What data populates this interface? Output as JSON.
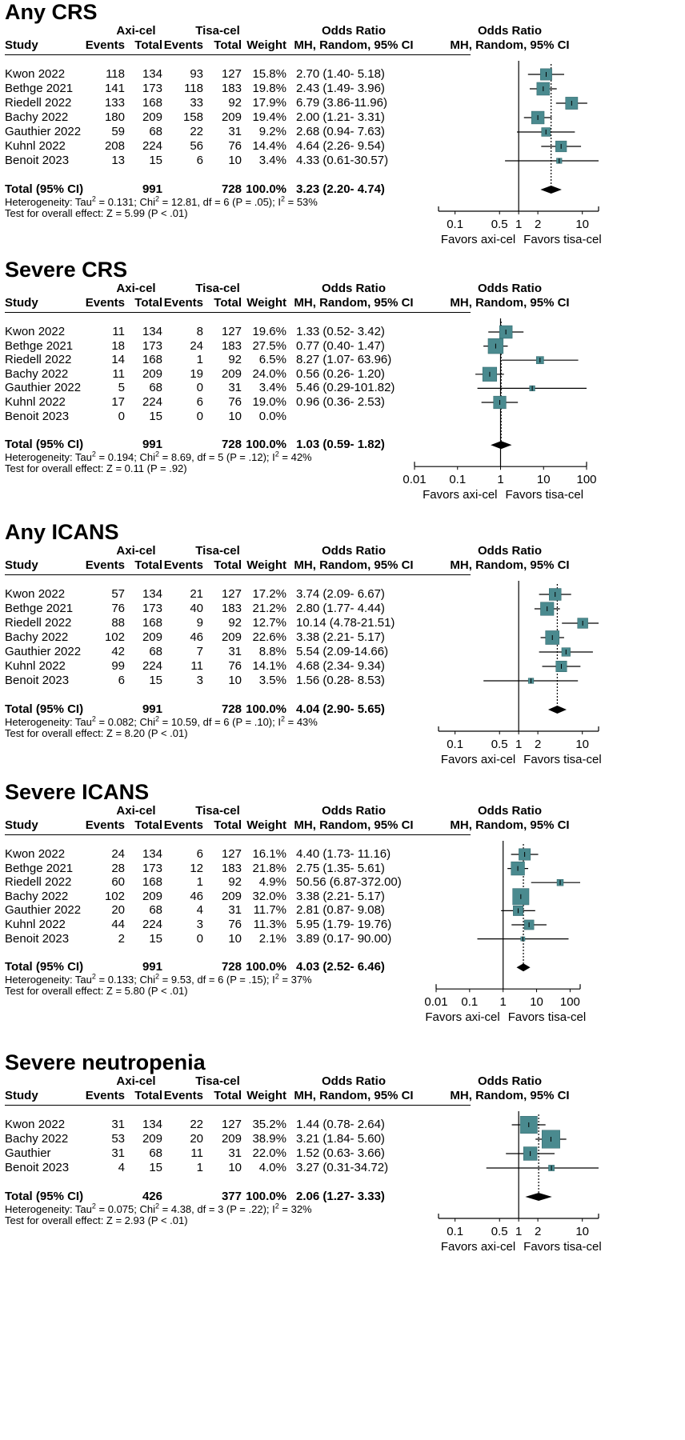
{
  "columns": {
    "study": "Study",
    "axi_group": "Axi-cel",
    "tisa_group": "Tisa-cel",
    "events": "Events",
    "total": "Total",
    "weight": "Weight",
    "or_top": "Odds Ratio",
    "or_bottom": "MH, Random, 95% CI",
    "plot_top": "Odds Ratio",
    "plot_bottom": "MH, Random, 95% CI"
  },
  "favors_left": "Favors axi-cel",
  "favors_right": "Favors tisa-cel",
  "colors": {
    "box": "#4a8a8f",
    "box_edge": "#2f6468",
    "line": "#000000"
  },
  "chart_data": [
    {
      "type": "forest",
      "title": "Any CRS",
      "xscale": "log",
      "xlim": [
        0.055,
        18
      ],
      "ticks": [
        0.1,
        0.5,
        1,
        2,
        10
      ],
      "tick_labels": [
        "0.1",
        "0.5",
        "1",
        "2",
        "10"
      ],
      "studies": [
        {
          "study": "Kwon 2022",
          "ev1": "118",
          "n1": "134",
          "ev2": "93",
          "n2": "127",
          "weight": "15.8%",
          "or_text": "2.70 (1.40- 5.18)",
          "or": 2.7,
          "lo": 1.4,
          "hi": 5.18,
          "w": 15.8
        },
        {
          "study": "Bethge 2021",
          "ev1": "141",
          "n1": "173",
          "ev2": "118",
          "n2": "183",
          "weight": "19.8%",
          "or_text": "2.43 (1.49- 3.96)",
          "or": 2.43,
          "lo": 1.49,
          "hi": 3.96,
          "w": 19.8
        },
        {
          "study": "Riedell 2022",
          "ev1": "133",
          "n1": "168",
          "ev2": "33",
          "n2": "92",
          "weight": "17.9%",
          "or_text": "6.79 (3.86-11.96)",
          "or": 6.79,
          "lo": 3.86,
          "hi": 11.96,
          "w": 17.9
        },
        {
          "study": "Bachy 2022",
          "ev1": "180",
          "n1": "209",
          "ev2": "158",
          "n2": "209",
          "weight": "19.4%",
          "or_text": "2.00 (1.21- 3.31)",
          "or": 2.0,
          "lo": 1.21,
          "hi": 3.31,
          "w": 19.4
        },
        {
          "study": "Gauthier 2022",
          "ev1": "59",
          "n1": "68",
          "ev2": "22",
          "n2": "31",
          "weight": "9.2%",
          "or_text": "2.68 (0.94- 7.63)",
          "or": 2.68,
          "lo": 0.94,
          "hi": 7.63,
          "w": 9.2
        },
        {
          "study": "Kuhnl 2022",
          "ev1": "208",
          "n1": "224",
          "ev2": "56",
          "n2": "76",
          "weight": "14.4%",
          "or_text": "4.64 (2.26- 9.54)",
          "or": 4.64,
          "lo": 2.26,
          "hi": 9.54,
          "w": 14.4
        },
        {
          "study": "Benoit 2023",
          "ev1": "13",
          "n1": "15",
          "ev2": "6",
          "n2": "10",
          "weight": "3.4%",
          "or_text": "4.33 (0.61-30.57)",
          "or": 4.33,
          "lo": 0.61,
          "hi": 30.57,
          "w": 3.4
        }
      ],
      "total": {
        "label": "Total (95% CI)",
        "n1": "991",
        "n2": "728",
        "weight": "100.0%",
        "or_text": "3.23 (2.20- 4.74)",
        "or": 3.23,
        "lo": 2.2,
        "hi": 4.74
      },
      "heterogeneity": {
        "tau2": "0.131",
        "chi2": "12.81",
        "df": "6",
        "p": "(P = .05)",
        "i2": "53%"
      },
      "overall_effect": "Test for overall effect: Z = 5.99 (P < .01)"
    },
    {
      "type": "forest",
      "title": "Severe CRS",
      "xscale": "log",
      "xlim": [
        0.01,
        100
      ],
      "ticks": [
        0.01,
        0.1,
        1,
        10,
        100
      ],
      "tick_labels": [
        "0.01",
        "0.1",
        "1",
        "10",
        "100"
      ],
      "studies": [
        {
          "study": "Kwon 2022",
          "ev1": "11",
          "n1": "134",
          "ev2": "8",
          "n2": "127",
          "weight": "19.6%",
          "or_text": "1.33 (0.52- 3.42)",
          "or": 1.33,
          "lo": 0.52,
          "hi": 3.42,
          "w": 19.6
        },
        {
          "study": "Bethge 2021",
          "ev1": "18",
          "n1": "173",
          "ev2": "24",
          "n2": "183",
          "weight": "27.5%",
          "or_text": "0.77 (0.40- 1.47)",
          "or": 0.77,
          "lo": 0.4,
          "hi": 1.47,
          "w": 27.5
        },
        {
          "study": "Riedell 2022",
          "ev1": "14",
          "n1": "168",
          "ev2": "1",
          "n2": "92",
          "weight": "6.5%",
          "or_text": "8.27 (1.07- 63.96)",
          "or": 8.27,
          "lo": 1.07,
          "hi": 63.96,
          "w": 6.5
        },
        {
          "study": "Bachy 2022",
          "ev1": "11",
          "n1": "209",
          "ev2": "19",
          "n2": "209",
          "weight": "24.0%",
          "or_text": "0.56 (0.26- 1.20)",
          "or": 0.56,
          "lo": 0.26,
          "hi": 1.2,
          "w": 24.0
        },
        {
          "study": "Gauthier 2022",
          "ev1": "5",
          "n1": "68",
          "ev2": "0",
          "n2": "31",
          "weight": "3.4%",
          "or_text": "5.46 (0.29-101.82)",
          "or": 5.46,
          "lo": 0.29,
          "hi": 101.82,
          "w": 3.4
        },
        {
          "study": "Kuhnl 2022",
          "ev1": "17",
          "n1": "224",
          "ev2": "6",
          "n2": "76",
          "weight": "19.0%",
          "or_text": "0.96 (0.36- 2.53)",
          "or": 0.96,
          "lo": 0.36,
          "hi": 2.53,
          "w": 19.0
        },
        {
          "study": "Benoit 2023",
          "ev1": "0",
          "n1": "15",
          "ev2": "0",
          "n2": "10",
          "weight": "0.0%",
          "or_text": "",
          "or": null,
          "lo": null,
          "hi": null,
          "w": 0
        }
      ],
      "total": {
        "label": "Total (95% CI)",
        "n1": "991",
        "n2": "728",
        "weight": "100.0%",
        "or_text": "1.03 (0.59- 1.82)",
        "or": 1.03,
        "lo": 0.59,
        "hi": 1.82
      },
      "heterogeneity": {
        "tau2": "0.194",
        "chi2": "8.69",
        "df": "5",
        "p": "(P = .12)",
        "i2": "42%"
      },
      "overall_effect": "Test for overall effect: Z = 0.11 (P = .92)"
    },
    {
      "type": "forest",
      "title": "Any ICANS",
      "xscale": "log",
      "xlim": [
        0.055,
        18
      ],
      "ticks": [
        0.1,
        0.5,
        1,
        2,
        10
      ],
      "tick_labels": [
        "0.1",
        "0.5",
        "1",
        "2",
        "10"
      ],
      "studies": [
        {
          "study": "Kwon 2022",
          "ev1": "57",
          "n1": "134",
          "ev2": "21",
          "n2": "127",
          "weight": "17.2%",
          "or_text": "3.74 (2.09- 6.67)",
          "or": 3.74,
          "lo": 2.09,
          "hi": 6.67,
          "w": 17.2
        },
        {
          "study": "Bethge 2021",
          "ev1": "76",
          "n1": "173",
          "ev2": "40",
          "n2": "183",
          "weight": "21.2%",
          "or_text": "2.80 (1.77- 4.44)",
          "or": 2.8,
          "lo": 1.77,
          "hi": 4.44,
          "w": 21.2
        },
        {
          "study": "Riedell 2022",
          "ev1": "88",
          "n1": "168",
          "ev2": "9",
          "n2": "92",
          "weight": "12.7%",
          "or_text": "10.14 (4.78-21.51)",
          "or": 10.14,
          "lo": 4.78,
          "hi": 21.51,
          "w": 12.7
        },
        {
          "study": "Bachy 2022",
          "ev1": "102",
          "n1": "209",
          "ev2": "46",
          "n2": "209",
          "weight": "22.6%",
          "or_text": "3.38 (2.21- 5.17)",
          "or": 3.38,
          "lo": 2.21,
          "hi": 5.17,
          "w": 22.6
        },
        {
          "study": "Gauthier 2022",
          "ev1": "42",
          "n1": "68",
          "ev2": "7",
          "n2": "31",
          "weight": "8.8%",
          "or_text": "5.54 (2.09-14.66)",
          "or": 5.54,
          "lo": 2.09,
          "hi": 14.66,
          "w": 8.8
        },
        {
          "study": "Kuhnl 2022",
          "ev1": "99",
          "n1": "224",
          "ev2": "11",
          "n2": "76",
          "weight": "14.1%",
          "or_text": "4.68 (2.34- 9.34)",
          "or": 4.68,
          "lo": 2.34,
          "hi": 9.34,
          "w": 14.1
        },
        {
          "study": "Benoit 2023",
          "ev1": "6",
          "n1": "15",
          "ev2": "3",
          "n2": "10",
          "weight": "3.5%",
          "or_text": "1.56 (0.28- 8.53)",
          "or": 1.56,
          "lo": 0.28,
          "hi": 8.53,
          "w": 3.5
        }
      ],
      "total": {
        "label": "Total (95% CI)",
        "n1": "991",
        "n2": "728",
        "weight": "100.0%",
        "or_text": "4.04 (2.90- 5.65)",
        "or": 4.04,
        "lo": 2.9,
        "hi": 5.65
      },
      "heterogeneity": {
        "tau2": "0.082",
        "chi2": "10.59",
        "df": "6",
        "p": "(P = .10)",
        "i2": "43%"
      },
      "overall_effect": "Test for overall effect: Z = 8.20 (P < .01)"
    },
    {
      "type": "forest",
      "title": "Severe ICANS",
      "xscale": "log",
      "xlim": [
        0.01,
        200
      ],
      "ticks": [
        0.01,
        0.1,
        1,
        10,
        100
      ],
      "tick_labels": [
        "0.01",
        "0.1",
        "1",
        "10",
        "100"
      ],
      "studies": [
        {
          "study": "Kwon 2022",
          "ev1": "24",
          "n1": "134",
          "ev2": "6",
          "n2": "127",
          "weight": "16.1%",
          "or_text": "4.40 (1.73- 11.16)",
          "or": 4.4,
          "lo": 1.73,
          "hi": 11.16,
          "w": 16.1
        },
        {
          "study": "Bethge 2021",
          "ev1": "28",
          "n1": "173",
          "ev2": "12",
          "n2": "183",
          "weight": "21.8%",
          "or_text": "2.75 (1.35- 5.61)",
          "or": 2.75,
          "lo": 1.35,
          "hi": 5.61,
          "w": 21.8
        },
        {
          "study": "Riedell 2022",
          "ev1": "60",
          "n1": "168",
          "ev2": "1",
          "n2": "92",
          "weight": "4.9%",
          "or_text": "50.56 (6.87-372.00)",
          "or": 50.56,
          "lo": 6.87,
          "hi": 372.0,
          "w": 4.9
        },
        {
          "study": "Bachy 2022",
          "ev1": "102",
          "n1": "209",
          "ev2": "46",
          "n2": "209",
          "weight": "32.0%",
          "or_text": "3.38 (2.21- 5.17)",
          "or": 3.38,
          "lo": 2.21,
          "hi": 5.17,
          "w": 32.0
        },
        {
          "study": "Gauthier 2022",
          "ev1": "20",
          "n1": "68",
          "ev2": "4",
          "n2": "31",
          "weight": "11.7%",
          "or_text": "2.81 (0.87- 9.08)",
          "or": 2.81,
          "lo": 0.87,
          "hi": 9.08,
          "w": 11.7
        },
        {
          "study": "Kuhnl 2022",
          "ev1": "44",
          "n1": "224",
          "ev2": "3",
          "n2": "76",
          "weight": "11.3%",
          "or_text": "5.95 (1.79- 19.76)",
          "or": 5.95,
          "lo": 1.79,
          "hi": 19.76,
          "w": 11.3
        },
        {
          "study": "Benoit 2023",
          "ev1": "2",
          "n1": "15",
          "ev2": "0",
          "n2": "10",
          "weight": "2.1%",
          "or_text": "3.89 (0.17- 90.00)",
          "or": 3.89,
          "lo": 0.17,
          "hi": 90.0,
          "w": 2.1
        }
      ],
      "total": {
        "label": "Total (95% CI)",
        "n1": "991",
        "n2": "728",
        "weight": "100.0%",
        "or_text": "4.03 (2.52- 6.46)",
        "or": 4.03,
        "lo": 2.52,
        "hi": 6.46
      },
      "heterogeneity": {
        "tau2": "0.133",
        "chi2": "9.53",
        "df": "6",
        "p": "(P = .15)",
        "i2": "37%"
      },
      "overall_effect": "Test for overall effect: Z = 5.80 (P < .01)"
    },
    {
      "type": "forest",
      "title": "Severe neutropenia",
      "xscale": "log",
      "xlim": [
        0.055,
        18
      ],
      "ticks": [
        0.1,
        0.5,
        1,
        2,
        10
      ],
      "tick_labels": [
        "0.1",
        "0.5",
        "1",
        "2",
        "10"
      ],
      "studies": [
        {
          "study": "Kwon 2022",
          "ev1": "31",
          "n1": "134",
          "ev2": "22",
          "n2": "127",
          "weight": "35.2%",
          "or_text": "1.44 (0.78- 2.64)",
          "or": 1.44,
          "lo": 0.78,
          "hi": 2.64,
          "w": 35.2
        },
        {
          "study": "Bachy 2022",
          "ev1": "53",
          "n1": "209",
          "ev2": "20",
          "n2": "209",
          "weight": "38.9%",
          "or_text": "3.21 (1.84- 5.60)",
          "or": 3.21,
          "lo": 1.84,
          "hi": 5.6,
          "w": 38.9
        },
        {
          "study": "Gauthier",
          "ev1": "31",
          "n1": "68",
          "ev2": "11",
          "n2": "31",
          "weight": "22.0%",
          "or_text": "1.52 (0.63- 3.66)",
          "or": 1.52,
          "lo": 0.63,
          "hi": 3.66,
          "w": 22.0
        },
        {
          "study": "Benoit 2023",
          "ev1": "4",
          "n1": "15",
          "ev2": "1",
          "n2": "10",
          "weight": "4.0%",
          "or_text": "3.27 (0.31-34.72)",
          "or": 3.27,
          "lo": 0.31,
          "hi": 34.72,
          "w": 4.0
        }
      ],
      "total": {
        "label": "Total (95% CI)",
        "n1": "426",
        "n2": "377",
        "weight": "100.0%",
        "or_text": "2.06 (1.27- 3.33)",
        "or": 2.06,
        "lo": 1.27,
        "hi": 3.33
      },
      "heterogeneity": {
        "tau2": "0.075",
        "chi2": "4.38",
        "df": "3",
        "p": "(P = .22)",
        "i2": "32%"
      },
      "overall_effect": "Test for overall effect: Z = 2.93 (P < .01)"
    }
  ]
}
